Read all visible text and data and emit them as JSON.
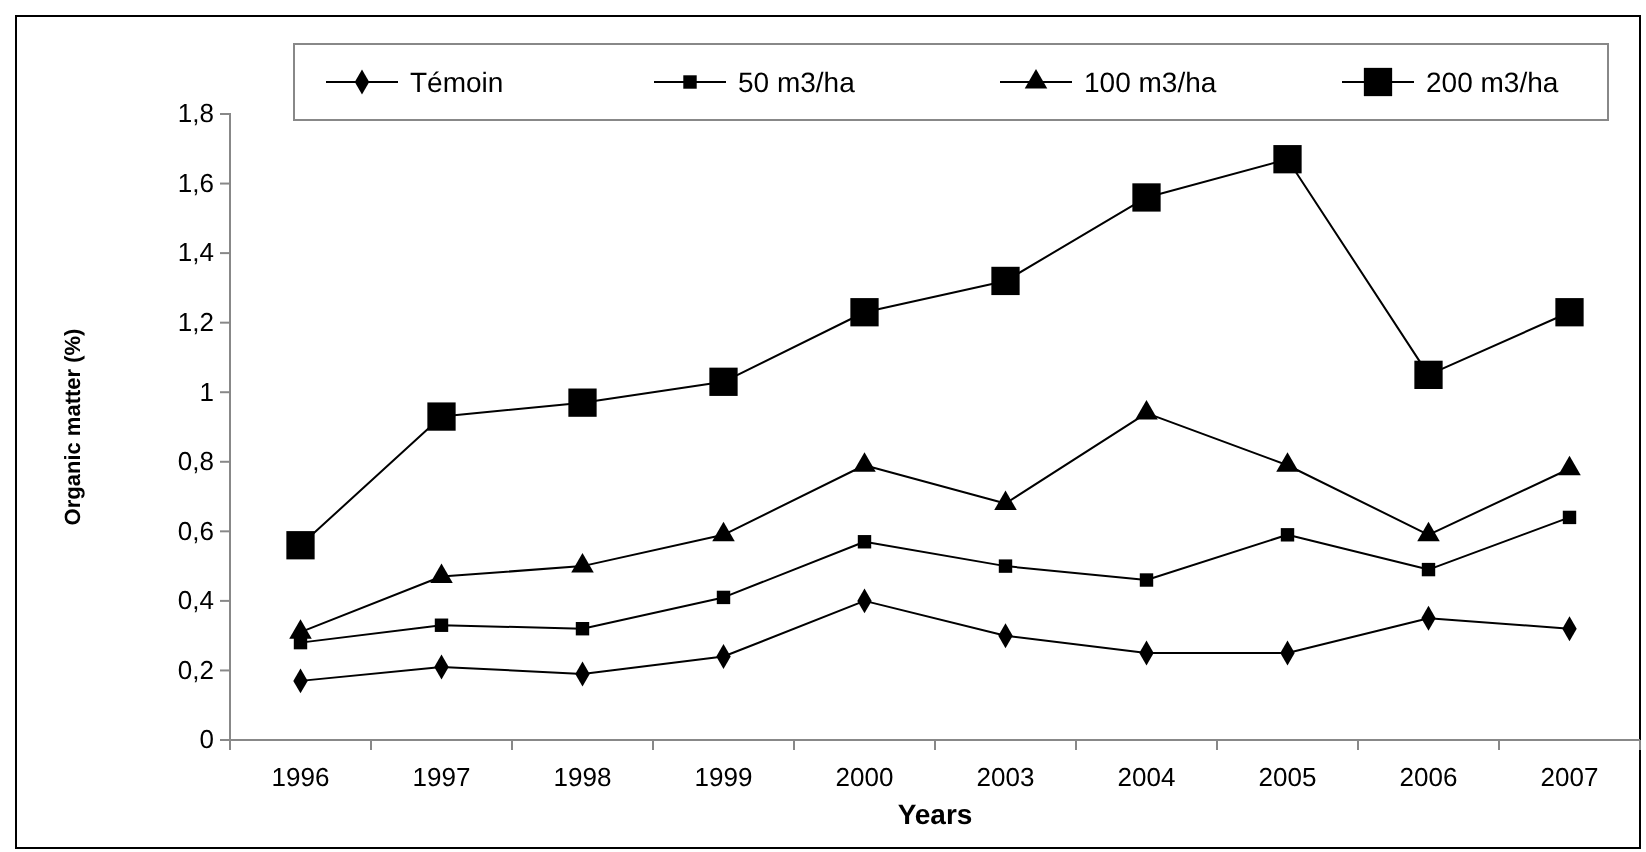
{
  "chart_data": {
    "type": "line",
    "xlabel": "Years",
    "ylabel": "Organic matter (%)",
    "categories": [
      "1996",
      "1997",
      "1998",
      "1999",
      "2000",
      "2003",
      "2004",
      "2005",
      "2006",
      "2007"
    ],
    "series": [
      {
        "name": "Témoin",
        "color": "#000000",
        "marker": "diamond",
        "values": [
          0.17,
          0.21,
          0.19,
          0.24,
          0.4,
          0.3,
          0.25,
          0.25,
          0.35,
          0.32
        ]
      },
      {
        "name": "50 m3/ha",
        "color": "#000000",
        "marker": "square",
        "values": [
          0.28,
          0.33,
          0.32,
          0.41,
          0.57,
          0.5,
          0.46,
          0.59,
          0.49,
          0.64
        ]
      },
      {
        "name": "100 m3/ha",
        "color": "#000000",
        "marker": "triangle",
        "values": [
          0.31,
          0.47,
          0.5,
          0.59,
          0.79,
          0.68,
          0.94,
          0.79,
          0.59,
          0.78
        ]
      },
      {
        "name": "200 m3/ha",
        "color": "#000000",
        "marker": "square",
        "values": [
          0.56,
          0.93,
          0.97,
          1.03,
          1.23,
          1.32,
          1.56,
          1.67,
          1.05,
          1.23
        ]
      }
    ],
    "ylim": [
      0,
      1.8
    ],
    "yticks": [
      0,
      {
        "value": 0.2,
        "label": "0,2"
      },
      {
        "value": 0.4,
        "label": "0,4"
      },
      {
        "value": 0.6,
        "label": "0,6"
      },
      {
        "value": 0.8,
        "label": "0,8"
      },
      1,
      {
        "value": 1.2,
        "label": "1,2"
      },
      {
        "value": 1.4,
        "label": "1,4"
      },
      {
        "value": 1.6,
        "label": "1,6"
      },
      {
        "value": 1.8,
        "label": "1,8"
      }
    ],
    "legend": "top",
    "grid": false,
    "line_style": "solid"
  }
}
